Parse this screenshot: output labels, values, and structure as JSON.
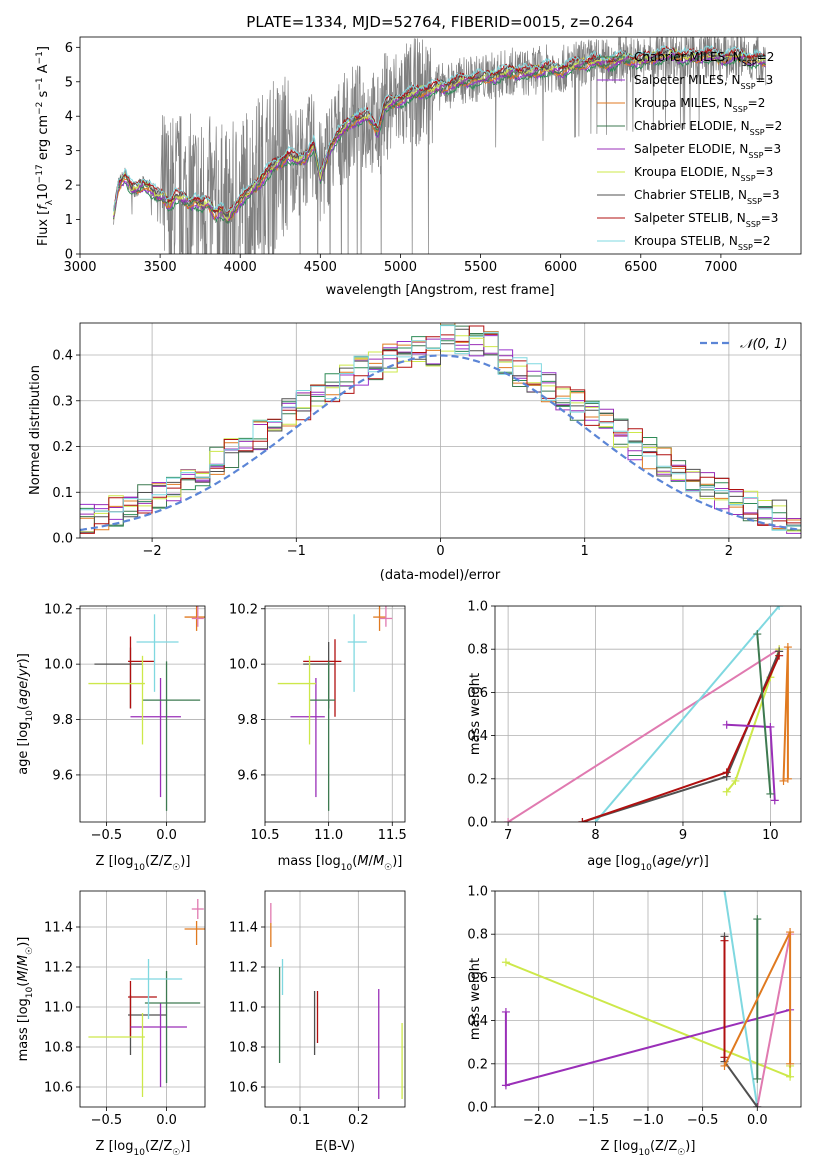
{
  "colors": {
    "Chabrier MILES": "#2e8b57",
    "Salpeter MILES": "#9932cc",
    "Kroupa MILES": "#e07a20",
    "Chabrier ELODIE": "#3d7a50",
    "Salpeter ELODIE": "#9a2fb8",
    "Kroupa ELODIE": "#cde84a",
    "Chabrier STELIB": "#505050",
    "Salpeter STELIB": "#b01010",
    "Kroupa STELIB": "#7fd8e0",
    "pink": "#e07ab0",
    "data": "#808080",
    "normal": "#5b85d6"
  },
  "legend_entries": [
    {
      "label": "Chabrier MILES, N",
      "sub": "SSP",
      "tail": "=2",
      "color": "#2e8b57"
    },
    {
      "label": "Salpeter MILES, N",
      "sub": "SSP",
      "tail": "=3",
      "color": "#9932cc"
    },
    {
      "label": "Kroupa MILES, N",
      "sub": "SSP",
      "tail": "=2",
      "color": "#e07a20"
    },
    {
      "label": "Chabrier ELODIE, N",
      "sub": "SSP",
      "tail": "=2",
      "color": "#3d7a50"
    },
    {
      "label": "Salpeter ELODIE, N",
      "sub": "SSP",
      "tail": "=3",
      "color": "#9a2fb8"
    },
    {
      "label": "Kroupa ELODIE, N",
      "sub": "SSP",
      "tail": "=3",
      "color": "#cde84a"
    },
    {
      "label": "Chabrier STELIB, N",
      "sub": "SSP",
      "tail": "=3",
      "color": "#505050"
    },
    {
      "label": "Salpeter STELIB, N",
      "sub": "SSP",
      "tail": "=3",
      "color": "#b01010"
    },
    {
      "label": "Kroupa STELIB, N",
      "sub": "SSP",
      "tail": "=2",
      "color": "#7fd8e0"
    }
  ],
  "chart_data": [
    {
      "type": "line",
      "title": "PLATE=1334, MJD=52764, FIBERID=0015, z=0.264",
      "xlabel": "wavelength [Angstrom, rest frame]",
      "ylabel": "Flux [f_λ 10^-17 erg cm^-2 s^-1 A^-1]",
      "xlim": [
        3000,
        7500
      ],
      "ylim": [
        0,
        6.3
      ],
      "xticks": [
        3000,
        3500,
        4000,
        4500,
        5000,
        5500,
        6000,
        6500,
        7000
      ],
      "yticks": [
        0,
        1,
        2,
        3,
        4,
        5,
        6
      ],
      "legend": "upper-right",
      "model_envelope": {
        "x": [
          3210,
          3240,
          3280,
          3320,
          3360,
          3400,
          3440,
          3480,
          3520,
          3560,
          3600,
          3640,
          3680,
          3720,
          3760,
          3800,
          3840,
          3880,
          3920,
          3960,
          4000,
          4060,
          4100,
          4160,
          4200,
          4260,
          4300,
          4360,
          4400,
          4460,
          4500,
          4560,
          4600,
          4700,
          4800,
          4860,
          4900,
          5000,
          5100,
          5200,
          5300,
          5400,
          5500,
          5600,
          5700,
          5800,
          5900,
          6000,
          6100,
          6200,
          6300,
          6400,
          6500,
          6600,
          6700,
          6800,
          6900,
          7000,
          7100,
          7200,
          7280
        ],
        "y": [
          1.1,
          2.0,
          2.3,
          1.9,
          1.9,
          2.05,
          1.9,
          1.7,
          1.65,
          1.45,
          1.7,
          1.6,
          1.5,
          1.55,
          1.4,
          1.5,
          1.2,
          1.3,
          1.0,
          1.3,
          1.6,
          1.8,
          2.0,
          2.35,
          2.5,
          2.7,
          2.9,
          2.7,
          2.8,
          3.2,
          2.2,
          3.1,
          3.4,
          3.9,
          4.0,
          3.6,
          4.3,
          4.5,
          4.7,
          4.8,
          4.9,
          5.05,
          5.1,
          5.2,
          5.3,
          5.25,
          5.4,
          5.35,
          5.5,
          5.6,
          5.55,
          5.7,
          5.6,
          5.75,
          5.8,
          5.7,
          5.8,
          5.7,
          5.75,
          5.65,
          5.6
        ]
      }
    },
    {
      "type": "histogram",
      "xlabel": "(data-model)/error",
      "ylabel": "Normed distribution",
      "xlim": [
        -2.5,
        2.5
      ],
      "ylim": [
        0,
        0.47
      ],
      "xticks": [
        -2,
        -1,
        0,
        1,
        2
      ],
      "yticks": [
        0.0,
        0.1,
        0.2,
        0.3,
        0.4
      ],
      "legend": "upper-right",
      "legend_label": "𝒩(0, 1)",
      "bin_width": 0.1,
      "bins_center": [
        0.02,
        0.025,
        0.03,
        0.045,
        0.06,
        0.07,
        0.08,
        0.1,
        0.1,
        0.12,
        0.13,
        0.16,
        0.18,
        0.2,
        0.22,
        0.22,
        0.24,
        0.24,
        0.27,
        0.3,
        0.3,
        0.29,
        0.32,
        0.34,
        0.35,
        0.35,
        0.36,
        0.37,
        0.38,
        0.4,
        0.41,
        0.42,
        0.42,
        0.44,
        0.42,
        0.4,
        0.38,
        0.37,
        0.36,
        0.34,
        0.33,
        0.33,
        0.31,
        0.3,
        0.28,
        0.27,
        0.25,
        0.23,
        0.22,
        0.2
      ]
    },
    {
      "type": "scatter",
      "xlabel": "Z [log10(Z/Z☉)]",
      "ylabel": "age [log10(age/yr)]",
      "xlim": [
        -0.72,
        0.32
      ],
      "ylim": [
        9.43,
        10.21
      ],
      "xticks": [
        -0.5,
        0.0
      ],
      "yticks": [
        9.6,
        9.8,
        10.0,
        10.2
      ],
      "points": [
        {
          "x": -0.3,
          "y": 10.0,
          "xerr": [
            0.3,
            0.1
          ],
          "yerr": [
            0.16,
            0.06
          ],
          "color": "#505050"
        },
        {
          "x": -0.3,
          "y": 10.01,
          "xerr": [
            0.02,
            0.2
          ],
          "yerr": [
            0.17,
            0.09
          ],
          "color": "#b01010"
        },
        {
          "x": -0.05,
          "y": 9.81,
          "xerr": [
            0.25,
            0.17
          ],
          "yerr": [
            0.29,
            0.14
          ],
          "color": "#9a2fb8"
        },
        {
          "x": 0.0,
          "y": 9.87,
          "xerr": [
            0.2,
            0.28
          ],
          "yerr": [
            0.4,
            0.14
          ],
          "color": "#3d7a50"
        },
        {
          "x": -0.2,
          "y": 9.93,
          "xerr": [
            0.45,
            0.02
          ],
          "yerr": [
            0.22,
            0.1
          ],
          "color": "#cde84a"
        },
        {
          "x": -0.1,
          "y": 10.08,
          "xerr": [
            0.15,
            0.2
          ],
          "yerr": [
            0.18,
            0.1
          ],
          "color": "#7fd8e0"
        },
        {
          "x": 0.25,
          "y": 10.17,
          "xerr": [
            0.1,
            0.1
          ],
          "yerr": [
            0.05,
            0.04
          ],
          "color": "#e07a20"
        },
        {
          "x": 0.26,
          "y": 10.165,
          "xerr": [
            0.05,
            0.05
          ],
          "yerr": [
            0.03,
            0.05
          ],
          "color": "#e07ab0"
        }
      ]
    },
    {
      "type": "scatter",
      "xlabel": "mass [log10(M/M☉)]",
      "ylabel": "",
      "xlim": [
        10.5,
        11.6
      ],
      "ylim": [
        9.43,
        10.21
      ],
      "xticks": [
        10.5,
        11.0,
        11.5
      ],
      "yticks": [
        9.6,
        9.8,
        10.0,
        10.2
      ],
      "points": [
        {
          "x": 11.0,
          "y": 10.0,
          "xerr": [
            0.2,
            0.05
          ],
          "yerr": [
            0.16,
            0.08
          ],
          "color": "#505050"
        },
        {
          "x": 11.05,
          "y": 10.01,
          "xerr": [
            0.25,
            0.05
          ],
          "yerr": [
            0.2,
            0.08
          ],
          "color": "#b01010"
        },
        {
          "x": 10.9,
          "y": 9.81,
          "xerr": [
            0.2,
            0.07
          ],
          "yerr": [
            0.29,
            0.14
          ],
          "color": "#9a2fb8"
        },
        {
          "x": 11.0,
          "y": 9.87,
          "xerr": [
            0.15,
            0.05
          ],
          "yerr": [
            0.4,
            0.14
          ],
          "color": "#3d7a50"
        },
        {
          "x": 10.85,
          "y": 9.93,
          "xerr": [
            0.25,
            0.05
          ],
          "yerr": [
            0.22,
            0.1
          ],
          "color": "#cde84a"
        },
        {
          "x": 11.2,
          "y": 10.08,
          "xerr": [
            0.05,
            0.1
          ],
          "yerr": [
            0.18,
            0.1
          ],
          "color": "#7fd8e0"
        },
        {
          "x": 11.4,
          "y": 10.17,
          "xerr": [
            0.05,
            0.05
          ],
          "yerr": [
            0.05,
            0.04
          ],
          "color": "#e07a20"
        },
        {
          "x": 11.45,
          "y": 10.165,
          "xerr": [
            0.05,
            0.05
          ],
          "yerr": [
            0.03,
            0.07
          ],
          "color": "#e07ab0"
        }
      ]
    },
    {
      "type": "line",
      "xlabel": "age [log10(age/yr)]",
      "ylabel": "mass weight",
      "xlim": [
        6.85,
        10.35
      ],
      "ylim": [
        0,
        1
      ],
      "xticks": [
        7,
        8,
        9,
        10
      ],
      "yticks": [
        0.0,
        0.2,
        0.4,
        0.6,
        0.8,
        1.0
      ],
      "series": [
        {
          "color": "#e07ab0",
          "x": [
            7.0,
            10.1
          ],
          "y": [
            0.0,
            0.8
          ]
        },
        {
          "color": "#7fd8e0",
          "x": [
            8.0,
            10.1
          ],
          "y": [
            0.0,
            1.0
          ]
        },
        {
          "color": "#cde84a",
          "x": [
            9.5,
            9.6,
            10.0,
            10.1
          ],
          "y": [
            0.14,
            0.19,
            0.67,
            0.8
          ]
        },
        {
          "color": "#505050",
          "x": [
            7.85,
            9.5,
            10.1
          ],
          "y": [
            0.0,
            0.21,
            0.79
          ]
        },
        {
          "color": "#b01010",
          "x": [
            7.85,
            9.5,
            10.1
          ],
          "y": [
            0.0,
            0.23,
            0.77
          ]
        },
        {
          "color": "#9a2fb8",
          "x": [
            9.5,
            10.0,
            10.05
          ],
          "y": [
            0.45,
            0.44,
            0.1
          ]
        },
        {
          "color": "#3d7a50",
          "x": [
            9.85,
            10.0
          ],
          "y": [
            0.87,
            0.13
          ]
        },
        {
          "color": "#e07a20",
          "x": [
            10.15,
            10.2,
            10.2
          ],
          "y": [
            0.19,
            0.81,
            0.2
          ]
        }
      ]
    },
    {
      "type": "scatter",
      "xlabel": "Z [log10(Z/Z☉)]",
      "ylabel": "mass [log10(M/M☉)]",
      "xlim": [
        -0.72,
        0.32
      ],
      "ylim": [
        10.5,
        11.58
      ],
      "xticks": [
        -0.5,
        0.0
      ],
      "yticks": [
        10.6,
        10.8,
        11.0,
        11.2,
        11.4
      ],
      "points": [
        {
          "x": -0.3,
          "y": 10.96,
          "xerr": [
            0.02,
            0.3
          ],
          "yerr": [
            0.2,
            0.1
          ],
          "color": "#505050"
        },
        {
          "x": -0.3,
          "y": 11.05,
          "xerr": [
            0.02,
            0.22
          ],
          "yerr": [
            0.2,
            0.08
          ],
          "color": "#b01010"
        },
        {
          "x": -0.05,
          "y": 10.9,
          "xerr": [
            0.25,
            0.22
          ],
          "yerr": [
            0.3,
            0.12
          ],
          "color": "#9a2fb8"
        },
        {
          "x": 0.0,
          "y": 11.02,
          "xerr": [
            0.18,
            0.28
          ],
          "yerr": [
            0.4,
            0.16
          ],
          "color": "#3d7a50"
        },
        {
          "x": -0.2,
          "y": 10.85,
          "xerr": [
            0.45,
            0.02
          ],
          "yerr": [
            0.3,
            0.12
          ],
          "color": "#cde84a"
        },
        {
          "x": -0.15,
          "y": 11.14,
          "xerr": [
            0.15,
            0.28
          ],
          "yerr": [
            0.2,
            0.1
          ],
          "color": "#7fd8e0"
        },
        {
          "x": 0.25,
          "y": 11.39,
          "xerr": [
            0.1,
            0.1
          ],
          "yerr": [
            0.08,
            0.04
          ],
          "color": "#e07a20"
        },
        {
          "x": 0.26,
          "y": 11.49,
          "xerr": [
            0.05,
            0.05
          ],
          "yerr": [
            0.05,
            0.05
          ],
          "color": "#e07ab0"
        }
      ]
    },
    {
      "type": "scatter",
      "xlabel": "E(B-V)",
      "ylabel": "",
      "xlim": [
        0.04,
        0.28
      ],
      "ylim": [
        10.5,
        11.58
      ],
      "xticks": [
        0.1,
        0.2
      ],
      "yticks": [
        10.6,
        10.8,
        11.0,
        11.2,
        11.4
      ],
      "points": [
        {
          "x": 0.05,
          "y": 11.47,
          "xerr": [
            0,
            0
          ],
          "yerr": [
            0.05,
            0.05
          ],
          "color": "#e07ab0"
        },
        {
          "x": 0.05,
          "y": 11.38,
          "xerr": [
            0,
            0
          ],
          "yerr": [
            0.08,
            0.04
          ],
          "color": "#e07a20"
        },
        {
          "x": 0.065,
          "y": 10.96,
          "xerr": [
            0,
            0
          ],
          "yerr": [
            0.24,
            0.24
          ],
          "color": "#3d7a50"
        },
        {
          "x": 0.07,
          "y": 11.14,
          "xerr": [
            0,
            0
          ],
          "yerr": [
            0.08,
            0.1
          ],
          "color": "#7fd8e0"
        },
        {
          "x": 0.125,
          "y": 10.92,
          "xerr": [
            0,
            0
          ],
          "yerr": [
            0.16,
            0.16
          ],
          "color": "#505050"
        },
        {
          "x": 0.13,
          "y": 10.96,
          "xerr": [
            0,
            0
          ],
          "yerr": [
            0.14,
            0.12
          ],
          "color": "#b01010"
        },
        {
          "x": 0.235,
          "y": 10.85,
          "xerr": [
            0,
            0
          ],
          "yerr": [
            0.31,
            0.24
          ],
          "color": "#9a2fb8"
        },
        {
          "x": 0.275,
          "y": 10.73,
          "xerr": [
            0,
            0
          ],
          "yerr": [
            0.19,
            0.19
          ],
          "color": "#cde84a"
        }
      ]
    },
    {
      "type": "line",
      "xlabel": "Z [log10(Z/Z☉)]",
      "ylabel": "mass weight",
      "xlim": [
        -2.4,
        0.4
      ],
      "ylim": [
        0,
        1
      ],
      "xticks": [
        -2.0,
        -1.5,
        -1.0,
        -0.5,
        0.0
      ],
      "yticks": [
        0.0,
        0.2,
        0.4,
        0.6,
        0.8,
        1.0
      ],
      "series": [
        {
          "color": "#cde84a",
          "x": [
            -2.3,
            0.3,
            0.3
          ],
          "y": [
            0.67,
            0.14,
            0.19
          ]
        },
        {
          "color": "#9a2fb8",
          "x": [
            -2.3,
            -2.3,
            0.3
          ],
          "y": [
            0.44,
            0.1,
            0.45
          ]
        },
        {
          "color": "#7fd8e0",
          "x": [
            -0.3,
            0.0
          ],
          "y": [
            1.0,
            0.0
          ]
        },
        {
          "color": "#e07ab0",
          "x": [
            0.0,
            0.3
          ],
          "y": [
            0.0,
            0.8
          ]
        },
        {
          "color": "#3d7a50",
          "x": [
            0.0,
            0.0
          ],
          "y": [
            0.87,
            0.13
          ]
        },
        {
          "color": "#505050",
          "x": [
            -0.3,
            -0.3,
            0.0
          ],
          "y": [
            0.79,
            0.21,
            0.0
          ]
        },
        {
          "color": "#b01010",
          "x": [
            -0.3,
            -0.3
          ],
          "y": [
            0.77,
            0.23
          ]
        },
        {
          "color": "#e07a20",
          "x": [
            -0.3,
            0.3,
            0.3
          ],
          "y": [
            0.19,
            0.81,
            0.2
          ]
        }
      ]
    }
  ]
}
